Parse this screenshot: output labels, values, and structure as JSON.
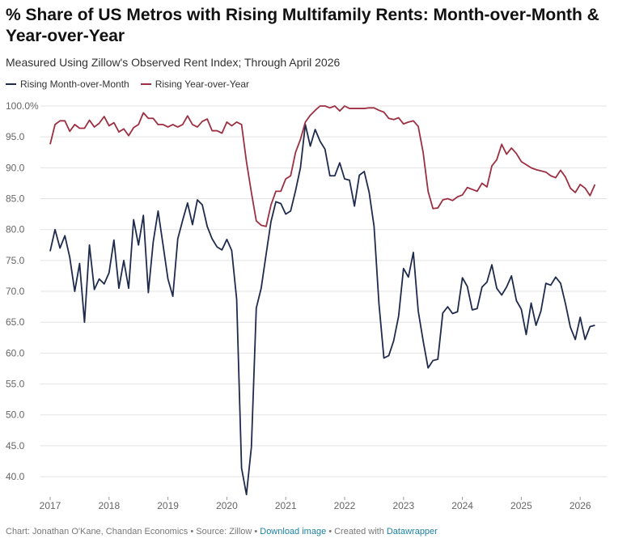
{
  "chart_data": {
    "type": "line",
    "title": "% Share of US Metros with Rising Multifamily Rents: Month-over-Month & Year-over-Year",
    "subtitle": "Measured Using Zillow's Observed Rent Index; Through April 2026",
    "x": [
      2017,
      2017.083,
      2017.167,
      2017.25,
      2017.333,
      2017.417,
      2017.5,
      2017.583,
      2017.667,
      2017.75,
      2017.833,
      2017.917,
      2018,
      2018.083,
      2018.167,
      2018.25,
      2018.333,
      2018.417,
      2018.5,
      2018.583,
      2018.667,
      2018.75,
      2018.833,
      2018.917,
      2019,
      2019.083,
      2019.167,
      2019.25,
      2019.333,
      2019.417,
      2019.5,
      2019.583,
      2019.667,
      2019.75,
      2019.833,
      2019.917,
      2020,
      2020.083,
      2020.167,
      2020.25,
      2020.333,
      2020.417,
      2020.5,
      2020.583,
      2020.667,
      2020.75,
      2020.833,
      2020.917,
      2021,
      2021.083,
      2021.167,
      2021.25,
      2021.333,
      2021.417,
      2021.5,
      2021.583,
      2021.667,
      2021.75,
      2021.833,
      2021.917,
      2022,
      2022.083,
      2022.167,
      2022.25,
      2022.333,
      2022.417,
      2022.5,
      2022.583,
      2022.667,
      2022.75,
      2022.833,
      2022.917,
      2023,
      2023.083,
      2023.167,
      2023.25,
      2023.333,
      2023.417,
      2023.5,
      2023.583,
      2023.667,
      2023.75,
      2023.833,
      2023.917,
      2024,
      2024.083,
      2024.167,
      2024.25,
      2024.333,
      2024.417,
      2024.5,
      2024.583,
      2024.667,
      2024.75,
      2024.833,
      2024.917,
      2025,
      2025.083,
      2025.167,
      2025.25,
      2025.333,
      2025.417,
      2025.5,
      2025.583,
      2025.667,
      2025.75,
      2025.833,
      2025.917,
      2026,
      2026.083,
      2026.167,
      2026.25
    ],
    "series": [
      {
        "name": "Rising Month-over-Month",
        "color": "#1f2b4d",
        "values": [
          76.5,
          80,
          77,
          79,
          75.5,
          70,
          74.5,
          65,
          77.5,
          70.3,
          72,
          71.2,
          73,
          78.3,
          70.5,
          75,
          70.5,
          81.6,
          77.5,
          82.3,
          69.8,
          78,
          83,
          77.5,
          72,
          69.2,
          78.5,
          81.5,
          84.3,
          80.8,
          84.8,
          84,
          80.5,
          78.5,
          77.2,
          76.7,
          78.4,
          76.6,
          68.7,
          41.4,
          37.1,
          44.8,
          67.3,
          70.5,
          76,
          81.3,
          84.5,
          84.2,
          82.5,
          83,
          86.3,
          90,
          97,
          93.5,
          96.2,
          94.3,
          93,
          88.7,
          88.7,
          90.8,
          88.2,
          88,
          83.8,
          88.8,
          89.4,
          86,
          80.5,
          68,
          59.2,
          59.6,
          62,
          66,
          73.7,
          72.3,
          76.3,
          66.8,
          62,
          57.6,
          58.8,
          59,
          66.5,
          67.5,
          66.4,
          66.7,
          72.2,
          70.8,
          67,
          67.2,
          70.7,
          71.5,
          74.3,
          70.5,
          69.4,
          70.7,
          72.5,
          68.5,
          67.1,
          63,
          68.1,
          64.5,
          66.8,
          71.3,
          71,
          72.3,
          71.3,
          68,
          64.2,
          62.2,
          65.8,
          62.2,
          64.3,
          64.5
        ]
      },
      {
        "name": "Rising Year-over-Year",
        "color": "#9c2f42",
        "values": [
          93.8,
          97,
          97.6,
          97.6,
          95.9,
          97,
          96.4,
          96.4,
          97.7,
          96.6,
          97.2,
          98.3,
          96.8,
          97.3,
          95.8,
          96.3,
          95.2,
          96.5,
          97,
          98.9,
          98,
          98,
          97,
          97,
          96.6,
          97,
          96.6,
          97,
          98.4,
          97,
          96.6,
          97.5,
          97.9,
          96,
          96,
          95.6,
          97.4,
          96.8,
          97.4,
          97,
          91,
          86,
          81.4,
          80.7,
          80.5,
          84,
          86.2,
          86.2,
          88.2,
          88.7,
          92.5,
          94.6,
          97.4,
          98.5,
          99.3,
          100,
          100,
          99.7,
          100,
          99.2,
          100,
          99.6,
          99.6,
          99.6,
          99.6,
          99.7,
          99.7,
          99.3,
          99,
          98,
          97.8,
          98.1,
          97.1,
          97.4,
          97.6,
          96.7,
          92.5,
          86.2,
          83.4,
          83.5,
          84.8,
          85,
          84.7,
          85.3,
          85.6,
          86.8,
          86.5,
          86.2,
          87.5,
          86.9,
          90.3,
          91.3,
          93.8,
          92.2,
          93.2,
          92.3,
          91,
          90.5,
          90,
          89.7,
          89.5,
          89.3,
          88.7,
          88.4,
          89.6,
          88.5,
          86.7,
          86,
          87.3,
          86.7,
          85.5,
          87.3
        ]
      }
    ],
    "xlim": [
      2017,
      2026.25
    ],
    "xticks": [
      2017,
      2018,
      2019,
      2020,
      2021,
      2022,
      2023,
      2024,
      2025,
      2026
    ],
    "ylim": [
      37,
      100
    ],
    "yticks": [
      {
        "value": 40,
        "label": "40.0"
      },
      {
        "value": 45,
        "label": "45.0"
      },
      {
        "value": 50,
        "label": "50.0"
      },
      {
        "value": 55,
        "label": "55.0"
      },
      {
        "value": 60,
        "label": "60.0"
      },
      {
        "value": 65,
        "label": "65.0"
      },
      {
        "value": 70,
        "label": "70.0"
      },
      {
        "value": 75,
        "label": "75.0"
      },
      {
        "value": 80,
        "label": "80.0"
      },
      {
        "value": 85,
        "label": "85.0"
      },
      {
        "value": 90,
        "label": "90.0"
      },
      {
        "value": 95,
        "label": "95.0"
      },
      {
        "value": 100,
        "label": "100.0%"
      }
    ],
    "grid": true,
    "footer": {
      "credit": "Chart: Jonathan O'Kane, Chandan Economics • Source: Zillow •",
      "download": "Download image",
      "created": "• Created with",
      "tool": "Datawrapper"
    }
  }
}
